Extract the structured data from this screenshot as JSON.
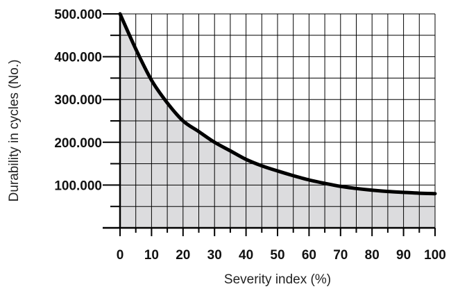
{
  "chart_data": {
    "type": "area",
    "title": "",
    "xlabel": "Severity index (%)",
    "ylabel": "Durability in cycles (No.)",
    "xlim": [
      0,
      100
    ],
    "ylim": [
      0,
      500000
    ],
    "x_ticks": [
      0,
      10,
      20,
      30,
      40,
      50,
      60,
      70,
      80,
      90,
      100
    ],
    "x_tick_labels": [
      "0",
      "10",
      "20",
      "30",
      "40",
      "50",
      "60",
      "70",
      "80",
      "90",
      "100"
    ],
    "y_ticks": [
      100000,
      200000,
      300000,
      400000,
      500000
    ],
    "y_tick_labels": [
      "100.000",
      "200.000",
      "300.000",
      "400.000",
      "500.000"
    ],
    "x_minor_step": 5,
    "y_minor_step": 50000,
    "grid": true,
    "series": [
      {
        "x": [
          0,
          5,
          10,
          15,
          20,
          25,
          30,
          35,
          40,
          45,
          50,
          55,
          60,
          65,
          70,
          75,
          80,
          85,
          90,
          95,
          100
        ],
        "y": [
          500000,
          418000,
          345000,
          292000,
          250000,
          225000,
          200000,
          180000,
          160000,
          145000,
          133000,
          122000,
          112000,
          104000,
          97000,
          92000,
          88000,
          85000,
          83000,
          81000,
          80000
        ]
      }
    ],
    "colors": {
      "fill": "#dcdcde",
      "line": "#000000",
      "grid": "#000000"
    }
  }
}
